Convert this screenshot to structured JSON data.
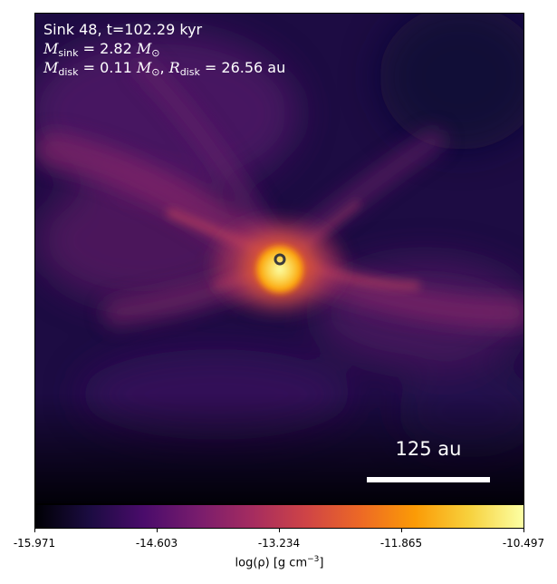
{
  "sink": {
    "title": "Sink 48, t=102.29 kyr",
    "mass_symbol": "M",
    "mass_sub": "sink",
    "mass_value": "= 2.82",
    "disk_mass_sub": "disk",
    "disk_mass_value": "= 0.11",
    "sun_symbol": "⊙",
    "disk_radius_symbol": "R",
    "disk_radius_value": "= 26.56 au",
    "separator": ","
  },
  "scale_bar": {
    "label": "125 au"
  },
  "colorbar": {
    "label_prefix": "log(ρ) [g cm",
    "label_exponent": "−3",
    "label_suffix": "]",
    "ticks": [
      "-15.971",
      "-14.603",
      "-13.234",
      "-11.865",
      "-10.497"
    ],
    "range": [
      -15.971,
      -10.497
    ],
    "colormap": "inferno"
  },
  "colors": {
    "background": "#1d0c43",
    "text": "#ffffff"
  }
}
